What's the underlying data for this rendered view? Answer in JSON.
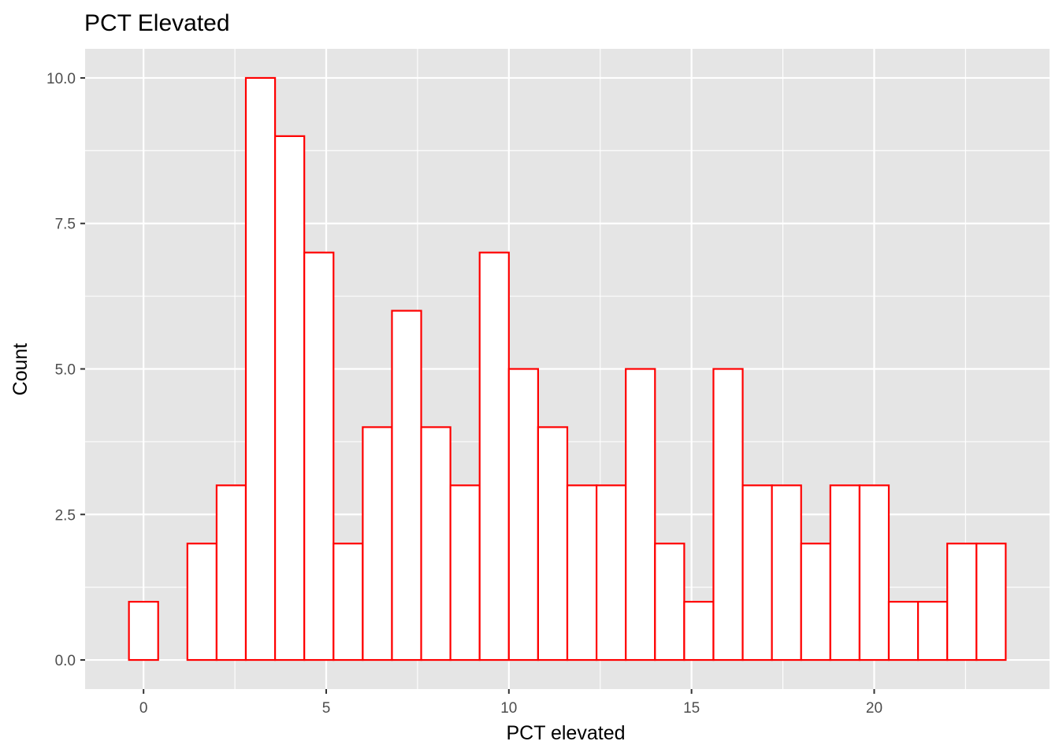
{
  "chart_data": {
    "type": "bar",
    "title": "PCT Elevated",
    "xlabel": "PCT elevated",
    "ylabel": "Count",
    "bin_width": 0.8,
    "bin_centers": [
      0.0,
      0.8,
      1.6,
      2.4,
      3.2,
      4.0,
      4.8,
      5.6,
      6.4,
      7.2,
      8.0,
      8.8,
      9.6,
      10.4,
      11.2,
      12.0,
      12.8,
      13.6,
      14.4,
      15.2,
      16.0,
      16.8,
      17.6,
      18.4,
      19.2,
      20.0,
      20.8,
      21.6,
      22.4,
      23.2
    ],
    "values": [
      1,
      0,
      2,
      3,
      10,
      9,
      7,
      2,
      4,
      6,
      4,
      3,
      7,
      5,
      4,
      3,
      3,
      5,
      2,
      1,
      5,
      3,
      3,
      2,
      3,
      3,
      1,
      1,
      2,
      2
    ],
    "xlim": [
      -1.6,
      24.8
    ],
    "ylim": [
      -0.5,
      10.5
    ],
    "x_ticks": [
      0,
      5,
      10,
      15,
      20
    ],
    "x_tick_labels": [
      "0",
      "5",
      "10",
      "15",
      "20"
    ],
    "y_ticks": [
      0,
      2.5,
      5,
      7.5,
      10
    ],
    "y_tick_labels": [
      "0.0",
      "2.5",
      "5.0",
      "7.5",
      "10.0"
    ],
    "grid": true,
    "panel_background": "#e5e5e5",
    "grid_color": "#ffffff",
    "bar_fill": "#ffffff",
    "bar_outline": "#ff0000"
  }
}
